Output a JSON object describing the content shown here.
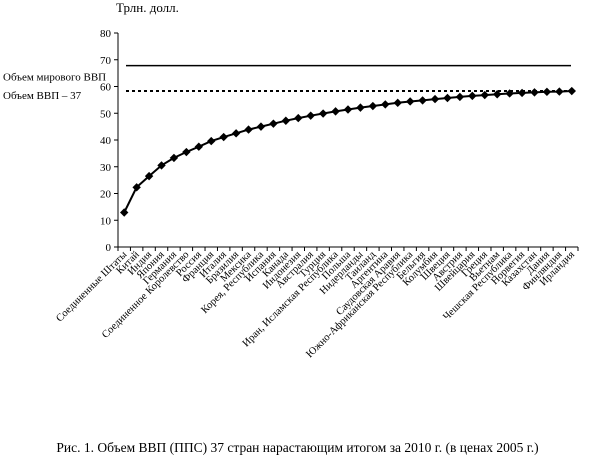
{
  "caption": "Рис. 1. Объем ВВП (ППС) 37 стран нарастающим итогом за 2010 г. (в ценах 2005 г.)",
  "chart_data": {
    "type": "line",
    "ylabel": "Трлн. долл.",
    "ylim": [
      0,
      80
    ],
    "yticks": [
      0,
      10,
      20,
      30,
      40,
      50,
      60,
      70,
      80
    ],
    "grid": false,
    "categories": [
      "Соединенные Штаты",
      "Китай",
      "Индия",
      "Япония",
      "Германия",
      "Соединенное Королевство",
      "Россия",
      "Франция",
      "Италия",
      "Бразилия",
      "Мексика",
      "Корея, Республика",
      "Испания",
      "Канада",
      "Индонезия",
      "Австралия",
      "Турция",
      "Иран, Исламская Республика",
      "Польша",
      "Нидерланды",
      "Таиланд",
      "Аргентина",
      "Саудовская Аравия",
      "Южно-Африканская Республика",
      "Бельгия",
      "Колумбия",
      "Швеция",
      "Австрия",
      "Швейцария",
      "Греция",
      "Вьетнам",
      "Чешская Республика",
      "Норвегия",
      "Казахстан",
      "Дания",
      "Финляндия",
      "Ирландия"
    ],
    "series": [
      {
        "values": [
          12.9,
          22.3,
          26.5,
          30.5,
          33.3,
          35.5,
          37.5,
          39.6,
          41.1,
          42.5,
          43.9,
          45.0,
          46.1,
          47.2,
          48.2,
          49.1,
          49.9,
          50.7,
          51.4,
          52.1,
          52.7,
          53.3,
          53.9,
          54.4,
          54.8,
          55.3,
          55.7,
          56.1,
          56.5,
          56.8,
          57.1,
          57.4,
          57.6,
          57.8,
          58.0,
          58.1,
          58.3
        ]
      }
    ],
    "reference_lines": [
      {
        "label": "Объем мирового ВВП",
        "value": 67.8,
        "style": "solid"
      },
      {
        "label": "Объем ВВП – 37",
        "value": 58.3,
        "style": "dotted"
      }
    ]
  }
}
